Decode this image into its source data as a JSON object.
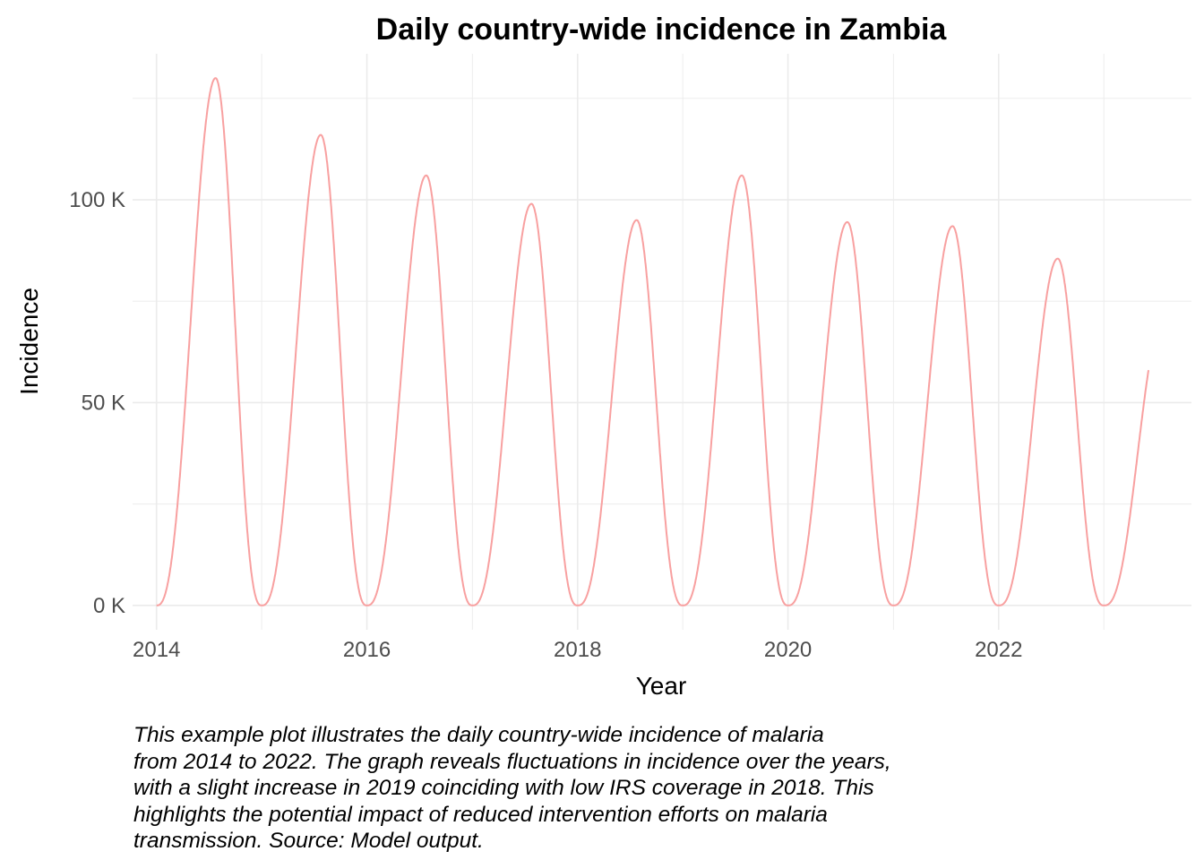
{
  "chart_data": {
    "type": "line",
    "title": "Daily country-wide incidence in Zambia",
    "xlabel": "Year",
    "ylabel": "Incidence",
    "x_ticks": [
      "2014",
      "2016",
      "2018",
      "2020",
      "2022"
    ],
    "y_ticks": [
      "0 K",
      "50 K",
      "100 K"
    ],
    "xlim": [
      "2013-10-10",
      "2023-11-01"
    ],
    "ylim": [
      -6000,
      136000
    ],
    "grid": true,
    "legend": "none",
    "series": [
      {
        "color": "#f8a0a0",
        "annual_cycles": [
          {
            "start": "2014-01-01",
            "peak_date": "2014-07-25",
            "peak": 130000,
            "end": "2015-01-01"
          },
          {
            "start": "2015-01-01",
            "peak_date": "2015-07-25",
            "peak": 116000,
            "end": "2016-01-01"
          },
          {
            "start": "2016-01-01",
            "peak_date": "2016-07-25",
            "peak": 106000,
            "end": "2017-01-01"
          },
          {
            "start": "2017-01-01",
            "peak_date": "2017-07-25",
            "peak": 99000,
            "end": "2018-01-01"
          },
          {
            "start": "2018-01-01",
            "peak_date": "2018-07-25",
            "peak": 95000,
            "end": "2019-01-01"
          },
          {
            "start": "2019-01-01",
            "peak_date": "2019-07-25",
            "peak": 106000,
            "end": "2020-01-01"
          },
          {
            "start": "2020-01-01",
            "peak_date": "2020-07-25",
            "peak": 94500,
            "end": "2021-01-01"
          },
          {
            "start": "2021-01-01",
            "peak_date": "2021-07-25",
            "peak": 93500,
            "end": "2022-01-01"
          },
          {
            "start": "2022-01-01",
            "peak_date": "2022-07-25",
            "peak": 85500,
            "end": "2023-01-01"
          },
          {
            "start": "2023-01-01",
            "end": "2023-06-05",
            "end_value": 58000
          }
        ]
      }
    ]
  },
  "caption": [
    "This example plot illustrates the daily country-wide incidence of malaria",
    "from 2014 to 2022. The graph reveals fluctuations in incidence over the years,",
    "with a slight increase in 2019 coinciding with low IRS coverage in 2018. This",
    "highlights the potential impact of reduced intervention efforts on malaria",
    "transmission. Source: Model output."
  ]
}
